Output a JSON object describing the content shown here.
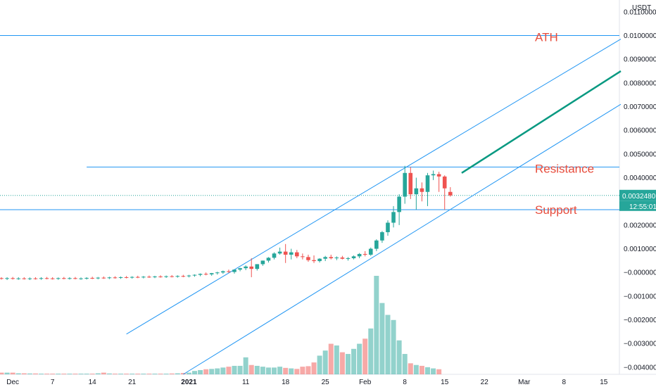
{
  "chart_data": {
    "type": "candlestick",
    "currency_label": "USDT",
    "price_badge": {
      "value": "0.00324801",
      "countdown": "12:55:01"
    },
    "y_axis": {
      "ticks": [
        "0.01100000",
        "0.01000000",
        "0.00900000",
        "0.00800000",
        "0.00700000",
        "0.00600000",
        "0.00500000",
        "0.00400000",
        "0.00200000",
        "0.00100000",
        "−0.00000000",
        "−0.00100000",
        "−0.00200000",
        "−0.00300000",
        "−0.00400000"
      ],
      "tick_values": [
        0.011,
        0.01,
        0.009,
        0.008,
        0.007,
        0.006,
        0.005,
        0.004,
        0.002,
        0.001,
        0,
        -0.001,
        -0.002,
        -0.003,
        -0.004
      ],
      "ylim": [
        -0.0043,
        0.0115
      ]
    },
    "x_axis": {
      "labels": [
        "Dec",
        "7",
        "14",
        "21",
        "2021",
        "11",
        "18",
        "25",
        "Feb",
        "8",
        "15",
        "22",
        "Mar",
        "8",
        "15"
      ],
      "label_days": [
        0,
        7,
        14,
        21,
        31,
        41,
        48,
        55,
        62,
        69,
        76,
        83,
        90,
        97,
        104
      ],
      "bold_labels": [
        "2021"
      ],
      "day_range": [
        -2,
        107
      ]
    },
    "annotations": {
      "ath": {
        "label": "ATH",
        "price": 0.01
      },
      "resistance": {
        "label": "Resistance",
        "price": 0.00445,
        "from_day": 13
      },
      "support": {
        "label": "Support",
        "price": 0.00265
      },
      "current_price_line": 0.00325,
      "channel_upper": {
        "start": [
          20,
          -0.0026
        ],
        "end": [
          107,
          0.00985
        ]
      },
      "channel_lower": {
        "start": [
          30,
          -0.0043
        ],
        "end": [
          107,
          0.0071
        ]
      },
      "projection": {
        "start": [
          79,
          0.0042
        ],
        "end": [
          107,
          0.0085
        ]
      }
    },
    "candles": [
      {
        "day": -2,
        "o": -0.00024,
        "h": -0.0002,
        "l": -0.0003,
        "c": -0.00026
      },
      {
        "day": -1,
        "o": -0.00026,
        "h": -0.0002,
        "l": -0.00032,
        "c": -0.00024
      },
      {
        "day": 0,
        "o": -0.00024,
        "h": -0.00019,
        "l": -0.0003,
        "c": -0.00026
      },
      {
        "day": 1,
        "o": -0.00026,
        "h": -0.0002,
        "l": -0.00031,
        "c": -0.00025
      },
      {
        "day": 2,
        "o": -0.00025,
        "h": -0.0002,
        "l": -0.0003,
        "c": -0.00027
      },
      {
        "day": 3,
        "o": -0.00027,
        "h": -0.00021,
        "l": -0.00032,
        "c": -0.00025
      },
      {
        "day": 4,
        "o": -0.00025,
        "h": -0.0002,
        "l": -0.0003,
        "c": -0.00026
      },
      {
        "day": 5,
        "o": -0.00026,
        "h": -0.0002,
        "l": -0.00031,
        "c": -0.00024
      },
      {
        "day": 6,
        "o": -0.00024,
        "h": -0.00019,
        "l": -0.00029,
        "c": -0.00025
      },
      {
        "day": 7,
        "o": -0.00025,
        "h": -0.0002,
        "l": -0.0003,
        "c": -0.00026
      },
      {
        "day": 8,
        "o": -0.00026,
        "h": -0.00021,
        "l": -0.00031,
        "c": -0.00024
      },
      {
        "day": 9,
        "o": -0.00024,
        "h": -0.00019,
        "l": -0.00029,
        "c": -0.00025
      },
      {
        "day": 10,
        "o": -0.00025,
        "h": -0.0002,
        "l": -0.0003,
        "c": -0.00024
      },
      {
        "day": 11,
        "o": -0.00024,
        "h": -0.00019,
        "l": -0.00029,
        "c": -0.00026
      },
      {
        "day": 12,
        "o": -0.00026,
        "h": -0.00021,
        "l": -0.00031,
        "c": -0.00025
      },
      {
        "day": 13,
        "o": -0.00025,
        "h": -0.0002,
        "l": -0.0003,
        "c": -0.00023
      },
      {
        "day": 14,
        "o": -0.00023,
        "h": -0.00018,
        "l": -0.00028,
        "c": -0.00024
      },
      {
        "day": 15,
        "o": -0.00024,
        "h": -0.00019,
        "l": -0.00029,
        "c": -0.00022
      },
      {
        "day": 16,
        "o": -0.00022,
        "h": -0.00017,
        "l": -0.00027,
        "c": -0.00023
      },
      {
        "day": 17,
        "o": -0.00023,
        "h": -0.00018,
        "l": -0.00028,
        "c": -0.00021
      },
      {
        "day": 18,
        "o": -0.00021,
        "h": -0.00016,
        "l": -0.00026,
        "c": -0.00022
      },
      {
        "day": 19,
        "o": -0.00022,
        "h": -0.00017,
        "l": -0.00027,
        "c": -0.0002
      },
      {
        "day": 20,
        "o": -0.0002,
        "h": -0.00015,
        "l": -0.00025,
        "c": -0.00021
      },
      {
        "day": 21,
        "o": -0.00021,
        "h": -0.00016,
        "l": -0.00026,
        "c": -0.00019
      },
      {
        "day": 22,
        "o": -0.00019,
        "h": -0.00014,
        "l": -0.00024,
        "c": -0.0002
      },
      {
        "day": 23,
        "o": -0.0002,
        "h": -0.00015,
        "l": -0.00025,
        "c": -0.00018
      },
      {
        "day": 24,
        "o": -0.00018,
        "h": -0.00013,
        "l": -0.00023,
        "c": -0.00019
      },
      {
        "day": 25,
        "o": -0.00019,
        "h": -0.00014,
        "l": -0.00024,
        "c": -0.00017
      },
      {
        "day": 26,
        "o": -0.00017,
        "h": -0.00012,
        "l": -0.00022,
        "c": -0.00018
      },
      {
        "day": 27,
        "o": -0.00018,
        "h": -0.00013,
        "l": -0.00023,
        "c": -0.00016
      },
      {
        "day": 28,
        "o": -0.00016,
        "h": -0.00011,
        "l": -0.00021,
        "c": -0.00017
      },
      {
        "day": 29,
        "o": -0.00017,
        "h": -0.00012,
        "l": -0.00022,
        "c": -0.00015
      },
      {
        "day": 30,
        "o": -0.00015,
        "h": -0.0001,
        "l": -0.0002,
        "c": -0.00016
      },
      {
        "day": 31,
        "o": -0.00016,
        "h": -0.0001,
        "l": -0.00021,
        "c": -0.00013
      },
      {
        "day": 32,
        "o": -0.00013,
        "h": -8e-05,
        "l": -0.00018,
        "c": -0.0001
      },
      {
        "day": 33,
        "o": -0.0001,
        "h": -4e-05,
        "l": -0.00016,
        "c": -6e-05
      },
      {
        "day": 34,
        "o": -6e-05,
        "h": 0.0,
        "l": -0.00012,
        "c": -8e-05
      },
      {
        "day": 35,
        "o": -8e-05,
        "h": -2e-05,
        "l": -0.00014,
        "c": -3e-05
      },
      {
        "day": 36,
        "o": -3e-05,
        "h": 3e-05,
        "l": -9e-05,
        "c": 0.0
      },
      {
        "day": 37,
        "o": 0.0,
        "h": 8e-05,
        "l": -6e-05,
        "c": 5e-05
      },
      {
        "day": 38,
        "o": 5e-05,
        "h": 0.00012,
        "l": -2e-05,
        "c": 2e-05
      },
      {
        "day": 39,
        "o": 2e-05,
        "h": 0.0001,
        "l": -5e-05,
        "c": 0.00012
      },
      {
        "day": 40,
        "o": 0.00012,
        "h": 0.0002,
        "l": 5e-05,
        "c": 0.00018
      },
      {
        "day": 41,
        "o": 0.00018,
        "h": 0.0003,
        "l": 0.0001,
        "c": 0.00025
      },
      {
        "day": 42,
        "o": 0.00025,
        "h": 0.0006,
        "l": -0.0002,
        "c": 0.00015
      },
      {
        "day": 43,
        "o": 0.00015,
        "h": 0.00035,
        "l": 8e-05,
        "c": 0.00035
      },
      {
        "day": 44,
        "o": 0.00035,
        "h": 0.0005,
        "l": 0.00028,
        "c": 0.0005
      },
      {
        "day": 45,
        "o": 0.0005,
        "h": 0.00065,
        "l": 0.00042,
        "c": 0.00062
      },
      {
        "day": 46,
        "o": 0.00062,
        "h": 0.00085,
        "l": 0.00055,
        "c": 0.0008
      },
      {
        "day": 47,
        "o": 0.0008,
        "h": 0.00105,
        "l": 0.00075,
        "c": 0.00088
      },
      {
        "day": 48,
        "o": 0.00088,
        "h": 0.0012,
        "l": 0.0004,
        "c": 0.00075
      },
      {
        "day": 49,
        "o": 0.00075,
        "h": 0.001,
        "l": 0.00055,
        "c": 0.00085
      },
      {
        "day": 50,
        "o": 0.00085,
        "h": 0.00095,
        "l": 0.0006,
        "c": 0.00068
      },
      {
        "day": 51,
        "o": 0.00068,
        "h": 0.0008,
        "l": 0.00055,
        "c": 0.00065
      },
      {
        "day": 52,
        "o": 0.00065,
        "h": 0.00075,
        "l": 0.00045,
        "c": 0.00052
      },
      {
        "day": 53,
        "o": 0.00052,
        "h": 0.00072,
        "l": 0.0004,
        "c": 0.00048
      },
      {
        "day": 54,
        "o": 0.00048,
        "h": 0.0006,
        "l": 0.00042,
        "c": 0.00058
      },
      {
        "day": 55,
        "o": 0.00058,
        "h": 0.0007,
        "l": 0.00048,
        "c": 0.00065
      },
      {
        "day": 56,
        "o": 0.00065,
        "h": 0.00075,
        "l": 0.00055,
        "c": 0.0006
      },
      {
        "day": 57,
        "o": 0.0006,
        "h": 0.00068,
        "l": 0.00052,
        "c": 0.00063
      },
      {
        "day": 58,
        "o": 0.00063,
        "h": 0.0007,
        "l": 0.00055,
        "c": 0.00058
      },
      {
        "day": 59,
        "o": 0.00058,
        "h": 0.00065,
        "l": 0.0005,
        "c": 0.0006
      },
      {
        "day": 60,
        "o": 0.0006,
        "h": 0.00072,
        "l": 0.00055,
        "c": 0.00068
      },
      {
        "day": 61,
        "o": 0.00068,
        "h": 0.00082,
        "l": 0.0006,
        "c": 0.00078
      },
      {
        "day": 62,
        "o": 0.00078,
        "h": 0.0009,
        "l": 0.00068,
        "c": 0.00075
      },
      {
        "day": 63,
        "o": 0.00075,
        "h": 0.00105,
        "l": 0.0007,
        "c": 0.001
      },
      {
        "day": 64,
        "o": 0.001,
        "h": 0.0014,
        "l": 0.0009,
        "c": 0.00135
      },
      {
        "day": 65,
        "o": 0.00135,
        "h": 0.00175,
        "l": 0.00125,
        "c": 0.0017
      },
      {
        "day": 66,
        "o": 0.0017,
        "h": 0.0022,
        "l": 0.00155,
        "c": 0.0021
      },
      {
        "day": 67,
        "o": 0.0021,
        "h": 0.0028,
        "l": 0.0019,
        "c": 0.00255
      },
      {
        "day": 68,
        "o": 0.00255,
        "h": 0.0033,
        "l": 0.002,
        "c": 0.0032
      },
      {
        "day": 69,
        "o": 0.0032,
        "h": 0.0045,
        "l": 0.0029,
        "c": 0.0042
      },
      {
        "day": 70,
        "o": 0.0042,
        "h": 0.00445,
        "l": 0.0031,
        "c": 0.0033
      },
      {
        "day": 71,
        "o": 0.0033,
        "h": 0.004,
        "l": 0.00265,
        "c": 0.00355
      },
      {
        "day": 72,
        "o": 0.00355,
        "h": 0.0038,
        "l": 0.003,
        "c": 0.0034
      },
      {
        "day": 73,
        "o": 0.0034,
        "h": 0.0042,
        "l": 0.0028,
        "c": 0.0041
      },
      {
        "day": 74,
        "o": 0.0041,
        "h": 0.0043,
        "l": 0.0039,
        "c": 0.00415
      },
      {
        "day": 75,
        "o": 0.00415,
        "h": 0.00425,
        "l": 0.0034,
        "c": 0.00405
      },
      {
        "day": 76,
        "o": 0.00405,
        "h": 0.0041,
        "l": 0.00265,
        "c": 0.00355
      },
      {
        "day": 77,
        "o": 0.0034,
        "h": 0.0036,
        "l": 0.0032,
        "c": 0.00325
      }
    ],
    "volume": [
      1,
      1,
      1,
      0.6,
      0.6,
      0.5,
      0.5,
      0.4,
      0.4,
      0.4,
      0.4,
      0.4,
      0.4,
      0.4,
      0.4,
      0.4,
      0.4,
      0.6,
      1,
      0.5,
      0.4,
      0.4,
      0.4,
      0.4,
      0.4,
      0.4,
      0.4,
      0.4,
      0.4,
      0.4,
      0.5,
      0.6,
      0.8,
      1,
      2,
      2.5,
      3,
      3.2,
      3.5,
      4,
      4.5,
      5,
      5,
      10,
      5.5,
      5,
      4.5,
      4,
      4,
      4.5,
      3.8,
      3.5,
      3.2,
      4.5,
      4.8,
      7,
      11,
      14,
      18,
      17,
      13,
      12,
      15,
      18,
      21,
      27,
      58,
      42,
      35,
      32,
      20,
      12,
      6.5,
      5.5,
      5,
      4.2,
      3.5,
      3
    ]
  }
}
